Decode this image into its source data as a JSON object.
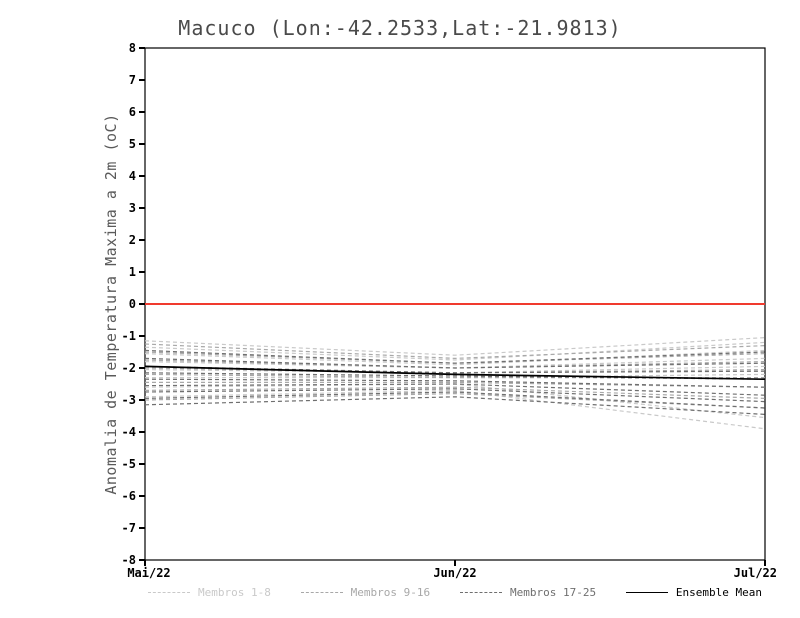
{
  "chart": {
    "title": "Macuco (Lon:-42.2533,Lat:-21.9813)",
    "ylabel": "Anomalia de Temperatura Maxima a 2m (oC)"
  },
  "chart_data": {
    "type": "line",
    "title": "Macuco (Lon:-42.2533,Lat:-21.9813)",
    "xlabel": "",
    "ylabel": "Anomalia de Temperatura Maxima a 2m (oC)",
    "x_ticks": [
      "Mai/22",
      "Jun/22",
      "Jul/22"
    ],
    "ylim": [
      -8,
      8
    ],
    "ytick_step": 1,
    "grid": false,
    "legend_position": "bottom",
    "zero_line": {
      "y": 0,
      "color": "#f03a2e"
    },
    "axis_color": "#000000",
    "groups": [
      {
        "name": "Membros 1-8",
        "color": "#c9c9c9",
        "style": "dashed",
        "members": [
          [
            -1.15,
            -1.6,
            -1.05
          ],
          [
            -1.35,
            -1.75,
            -1.2
          ],
          [
            -1.55,
            -1.9,
            -1.45
          ],
          [
            -1.8,
            -2.0,
            -1.7
          ],
          [
            -2.05,
            -2.15,
            -1.95
          ],
          [
            -2.3,
            -2.3,
            -2.2
          ],
          [
            -2.6,
            -2.5,
            -3.55
          ],
          [
            -2.9,
            -2.7,
            -3.9
          ]
        ]
      },
      {
        "name": "Membros 9-16",
        "color": "#a8a8a8",
        "style": "dashed",
        "members": [
          [
            -1.25,
            -1.7,
            -1.3
          ],
          [
            -1.5,
            -1.85,
            -1.55
          ],
          [
            -1.75,
            -2.0,
            -1.8
          ],
          [
            -2.0,
            -2.15,
            -2.05
          ],
          [
            -2.2,
            -2.3,
            -2.3
          ],
          [
            -2.45,
            -2.45,
            -2.6
          ],
          [
            -2.7,
            -2.6,
            -2.95
          ],
          [
            -3.0,
            -2.8,
            -3.25
          ]
        ]
      },
      {
        "name": "Membros 17-25",
        "color": "#6f6f6f",
        "style": "dashed",
        "members": [
          [
            -1.45,
            -1.85,
            -1.5
          ],
          [
            -1.7,
            -2.0,
            -1.85
          ],
          [
            -1.95,
            -2.15,
            -2.1
          ],
          [
            -2.15,
            -2.25,
            -2.35
          ],
          [
            -2.35,
            -2.4,
            -2.6
          ],
          [
            -2.55,
            -2.5,
            -2.85
          ],
          [
            -2.75,
            -2.65,
            -3.05
          ],
          [
            -2.95,
            -2.75,
            -3.25
          ],
          [
            -3.15,
            -2.9,
            -3.45
          ]
        ]
      },
      {
        "name": "Ensemble Mean",
        "color": "#000000",
        "style": "solid",
        "members": [
          [
            -1.95,
            -2.2,
            -2.35
          ]
        ]
      }
    ]
  }
}
